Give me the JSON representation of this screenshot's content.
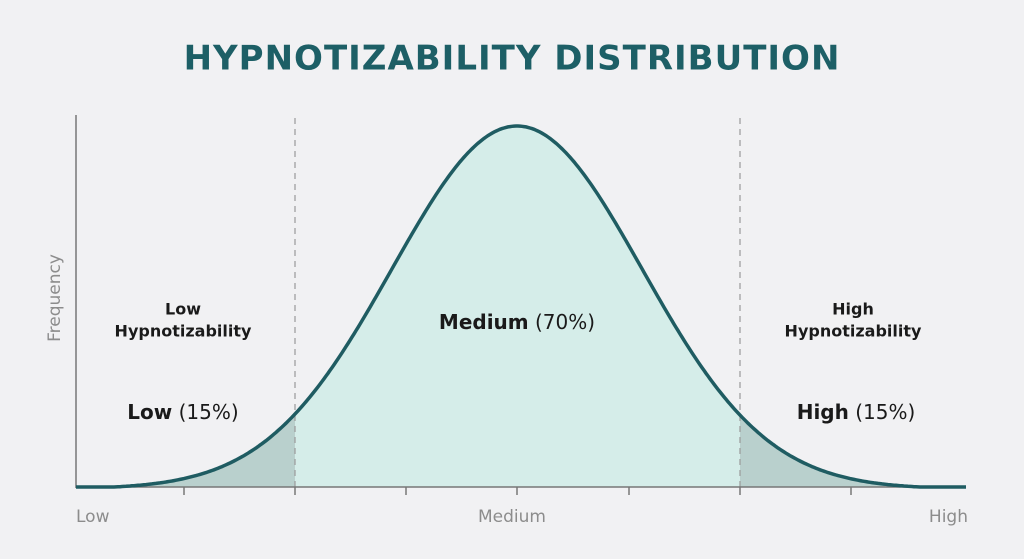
{
  "title": "HYPNOTIZABILITY DISTRIBUTION",
  "y_axis_label": "Frequency",
  "x_axis_labels": [
    "Low",
    "Medium",
    "High"
  ],
  "regions": [
    {
      "heading": [
        "Low",
        "Hypnotizability"
      ],
      "name": "Low",
      "share": "(15%)"
    },
    {
      "name": "Medium",
      "share": "(70%)"
    },
    {
      "heading": [
        "High",
        "Hypnotizability"
      ],
      "name": "High",
      "share": "(15%)"
    }
  ]
}
